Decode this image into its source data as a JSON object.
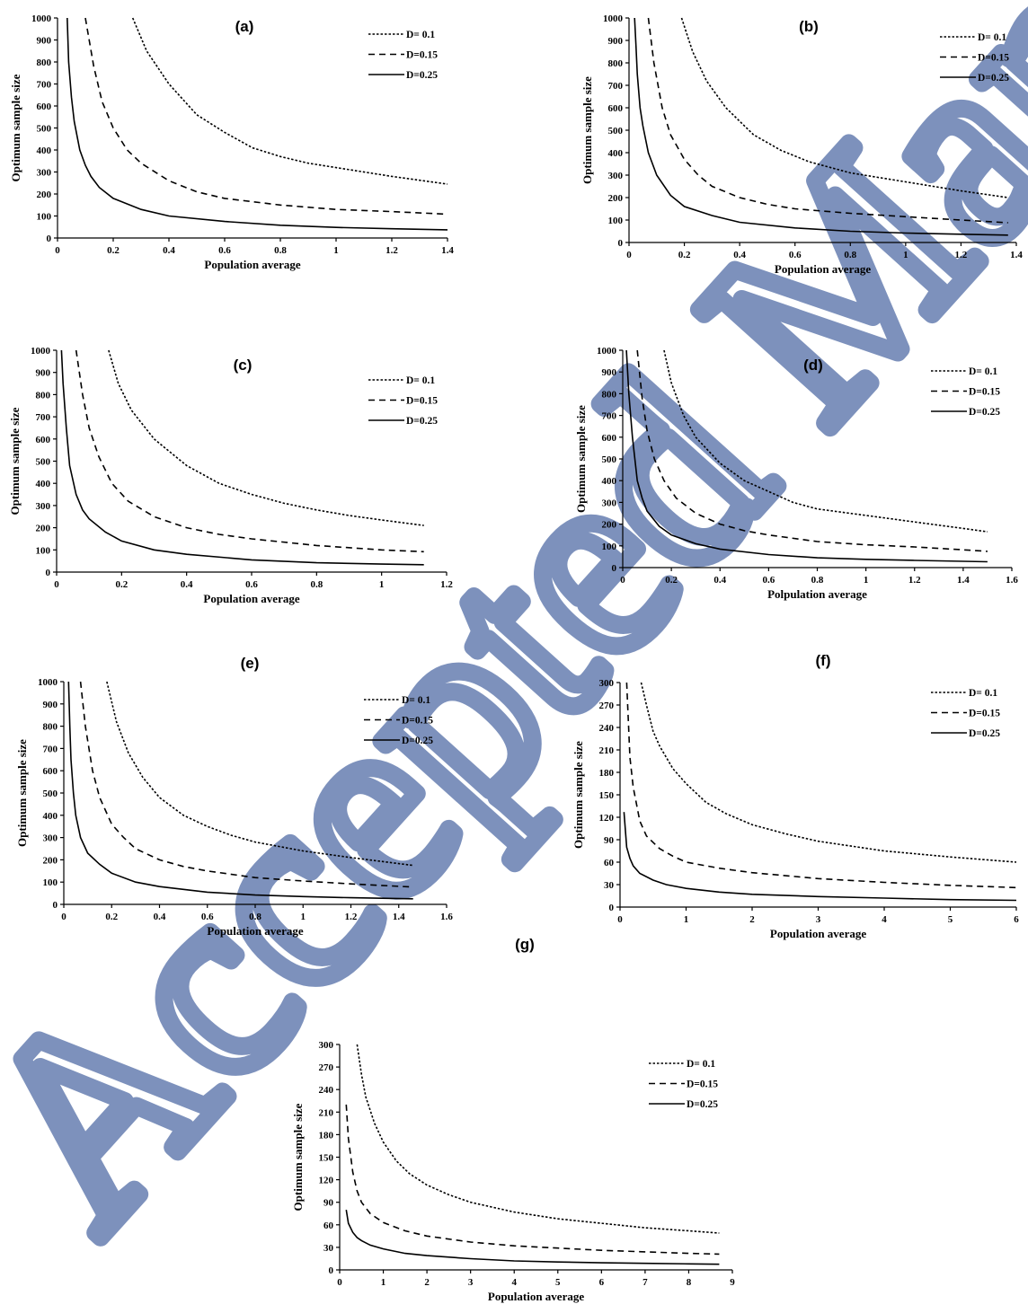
{
  "watermark": {
    "text": "Accepted Manuscript",
    "color": "#6f86b5"
  },
  "chart_data": [
    {
      "id": "a",
      "type": "line",
      "title": "(a)",
      "xlabel": "Population average",
      "ylabel": "Optimum sample size",
      "xlim": [
        0,
        1.4
      ],
      "ylim": [
        0,
        1000
      ],
      "xticks": [
        "0",
        "0.2",
        "0.4",
        "0.6",
        "0.8",
        "1",
        "1.2",
        "1.4"
      ],
      "yticks": [
        "0",
        "100",
        "200",
        "300",
        "400",
        "500",
        "600",
        "700",
        "800",
        "900",
        "1000"
      ],
      "grid": false,
      "legend": "top-right",
      "series": [
        {
          "name": "D= 0.1",
          "style": "dotted",
          "x": [
            0.27,
            0.32,
            0.4,
            0.5,
            0.6,
            0.7,
            0.8,
            0.9,
            1.0,
            1.2,
            1.4
          ],
          "y": [
            1000,
            850,
            700,
            560,
            480,
            410,
            370,
            340,
            320,
            280,
            245
          ]
        },
        {
          "name": "D=0.15",
          "style": "dashed",
          "x": [
            0.1,
            0.13,
            0.16,
            0.2,
            0.25,
            0.3,
            0.4,
            0.5,
            0.6,
            0.8,
            1.0,
            1.2,
            1.4
          ],
          "y": [
            1000,
            780,
            620,
            500,
            400,
            340,
            260,
            210,
            180,
            150,
            130,
            120,
            108
          ]
        },
        {
          "name": "D=0.25",
          "style": "solid",
          "x": [
            0.035,
            0.04,
            0.05,
            0.06,
            0.08,
            0.1,
            0.12,
            0.15,
            0.2,
            0.3,
            0.4,
            0.6,
            0.8,
            1.0,
            1.2,
            1.4
          ],
          "y": [
            1000,
            800,
            640,
            530,
            400,
            330,
            280,
            230,
            180,
            130,
            100,
            75,
            58,
            48,
            42,
            37
          ]
        }
      ]
    },
    {
      "id": "b",
      "type": "line",
      "title": "(b)",
      "xlabel": "Population average",
      "ylabel": "Optimum sample size",
      "xlim": [
        0,
        1.4
      ],
      "ylim": [
        0,
        1000
      ],
      "xticks": [
        "0",
        "0.2",
        "0.4",
        "0.6",
        "0.8",
        "1",
        "1.2",
        "1.4"
      ],
      "yticks": [
        "0",
        "100",
        "200",
        "300",
        "400",
        "500",
        "600",
        "700",
        "800",
        "900",
        "1000"
      ],
      "grid": false,
      "legend": "top-right",
      "series": [
        {
          "name": "D= 0.1",
          "style": "dotted",
          "x": [
            0.19,
            0.23,
            0.28,
            0.35,
            0.45,
            0.55,
            0.65,
            0.8,
            1.0,
            1.2,
            1.37
          ],
          "y": [
            1000,
            850,
            720,
            600,
            480,
            410,
            360,
            310,
            270,
            230,
            200
          ]
        },
        {
          "name": "D=0.15",
          "style": "dashed",
          "x": [
            0.07,
            0.09,
            0.12,
            0.15,
            0.2,
            0.25,
            0.3,
            0.4,
            0.5,
            0.6,
            0.8,
            1.0,
            1.2,
            1.37
          ],
          "y": [
            1000,
            800,
            600,
            480,
            370,
            300,
            250,
            200,
            170,
            150,
            130,
            115,
            100,
            88
          ]
        },
        {
          "name": "D=0.25",
          "style": "solid",
          "x": [
            0.02,
            0.025,
            0.03,
            0.04,
            0.05,
            0.07,
            0.1,
            0.15,
            0.2,
            0.3,
            0.4,
            0.6,
            0.8,
            1.0,
            1.2,
            1.37
          ],
          "y": [
            1000,
            880,
            750,
            600,
            520,
            400,
            300,
            210,
            160,
            120,
            90,
            65,
            50,
            42,
            37,
            33
          ]
        }
      ]
    },
    {
      "id": "c",
      "type": "line",
      "title": "(c)",
      "xlabel": "Population average",
      "ylabel": "Optimum sample size",
      "xlim": [
        0,
        1.2
      ],
      "ylim": [
        0,
        1000
      ],
      "xticks": [
        "0",
        "0.2",
        "0.4",
        "0.6",
        "0.8",
        "1",
        "1.2"
      ],
      "yticks": [
        "0",
        "100",
        "200",
        "300",
        "400",
        "500",
        "600",
        "700",
        "800",
        "900",
        "1000"
      ],
      "grid": false,
      "legend": "top-right",
      "series": [
        {
          "name": "D= 0.1",
          "style": "dotted",
          "x": [
            0.16,
            0.19,
            0.23,
            0.3,
            0.4,
            0.5,
            0.6,
            0.7,
            0.8,
            0.9,
            1.0,
            1.13
          ],
          "y": [
            1000,
            850,
            730,
            600,
            480,
            400,
            350,
            310,
            280,
            255,
            235,
            210
          ]
        },
        {
          "name": "D=0.15",
          "style": "dashed",
          "x": [
            0.06,
            0.08,
            0.1,
            0.13,
            0.17,
            0.22,
            0.3,
            0.4,
            0.5,
            0.6,
            0.8,
            1.0,
            1.13
          ],
          "y": [
            1000,
            800,
            650,
            520,
            400,
            320,
            250,
            200,
            170,
            150,
            120,
            100,
            92
          ]
        },
        {
          "name": "D=0.25",
          "style": "solid",
          "x": [
            0.015,
            0.02,
            0.03,
            0.04,
            0.06,
            0.08,
            0.1,
            0.15,
            0.2,
            0.3,
            0.4,
            0.6,
            0.8,
            1.0,
            1.13
          ],
          "y": [
            1000,
            850,
            650,
            480,
            350,
            280,
            240,
            180,
            140,
            100,
            80,
            55,
            42,
            36,
            33
          ]
        }
      ]
    },
    {
      "id": "d",
      "type": "line",
      "title": "(d)",
      "xlabel": "Polpulation average",
      "ylabel": "Optimum sample size",
      "xlim": [
        0,
        1.6
      ],
      "ylim": [
        0,
        1000
      ],
      "xticks": [
        "0",
        "0.2",
        "0.4",
        "0.6",
        "0.8",
        "1",
        "1.2",
        "1.4",
        "1.6"
      ],
      "yticks": [
        "0",
        "100",
        "200",
        "300",
        "400",
        "500",
        "600",
        "700",
        "800",
        "900",
        "1000"
      ],
      "grid": false,
      "legend": "top-right",
      "series": [
        {
          "name": "D= 0.1",
          "style": "dotted",
          "x": [
            0.17,
            0.2,
            0.25,
            0.3,
            0.4,
            0.5,
            0.6,
            0.7,
            0.8,
            1.0,
            1.2,
            1.4,
            1.5
          ],
          "y": [
            1000,
            850,
            700,
            600,
            480,
            400,
            350,
            300,
            270,
            240,
            210,
            180,
            165
          ]
        },
        {
          "name": "D=0.15",
          "style": "dashed",
          "x": [
            0.06,
            0.08,
            0.1,
            0.13,
            0.17,
            0.22,
            0.3,
            0.4,
            0.5,
            0.6,
            0.8,
            1.0,
            1.2,
            1.4,
            1.5
          ],
          "y": [
            1000,
            780,
            630,
            500,
            400,
            320,
            250,
            200,
            170,
            150,
            120,
            105,
            95,
            82,
            75
          ]
        },
        {
          "name": "D=0.25",
          "style": "solid",
          "x": [
            0.015,
            0.025,
            0.04,
            0.06,
            0.08,
            0.1,
            0.15,
            0.2,
            0.3,
            0.4,
            0.6,
            0.8,
            1.0,
            1.2,
            1.4,
            1.5
          ],
          "y": [
            1000,
            800,
            600,
            400,
            320,
            260,
            190,
            150,
            110,
            85,
            60,
            45,
            38,
            33,
            29,
            27
          ]
        }
      ]
    },
    {
      "id": "e",
      "type": "line",
      "title": "(e)",
      "xlabel": "Population average",
      "ylabel": "Optimum sample size",
      "xlim": [
        0,
        1.6
      ],
      "ylim": [
        0,
        1000
      ],
      "xticks": [
        "0",
        "0.2",
        "0.4",
        "0.6",
        "0.8",
        "1",
        "1.2",
        "1.4",
        "1.6"
      ],
      "yticks": [
        "0",
        "100",
        "200",
        "300",
        "400",
        "500",
        "600",
        "700",
        "800",
        "900",
        "1000"
      ],
      "grid": false,
      "legend": "top-right",
      "series": [
        {
          "name": "D= 0.1",
          "style": "dotted",
          "x": [
            0.18,
            0.22,
            0.27,
            0.33,
            0.4,
            0.5,
            0.6,
            0.7,
            0.8,
            1.0,
            1.2,
            1.46
          ],
          "y": [
            1000,
            820,
            680,
            570,
            480,
            400,
            350,
            310,
            280,
            240,
            210,
            175
          ]
        },
        {
          "name": "D=0.15",
          "style": "dashed",
          "x": [
            0.07,
            0.09,
            0.12,
            0.15,
            0.2,
            0.25,
            0.3,
            0.4,
            0.5,
            0.6,
            0.8,
            1.0,
            1.2,
            1.46
          ],
          "y": [
            1000,
            800,
            600,
            480,
            360,
            300,
            250,
            200,
            170,
            150,
            120,
            105,
            92,
            78
          ]
        },
        {
          "name": "D=0.25",
          "style": "solid",
          "x": [
            0.02,
            0.025,
            0.03,
            0.04,
            0.05,
            0.07,
            0.1,
            0.15,
            0.2,
            0.3,
            0.4,
            0.6,
            0.8,
            1.0,
            1.2,
            1.46
          ],
          "y": [
            1000,
            800,
            650,
            500,
            400,
            300,
            230,
            180,
            140,
            100,
            80,
            55,
            42,
            35,
            30,
            25
          ]
        }
      ]
    },
    {
      "id": "f",
      "type": "line",
      "title": "(f)",
      "xlabel": "Population average",
      "ylabel": "Optimum sample size",
      "xlim": [
        0,
        6
      ],
      "ylim": [
        0,
        300
      ],
      "xticks": [
        "0",
        "1",
        "2",
        "3",
        "4",
        "5",
        "6"
      ],
      "yticks": [
        "0",
        "30",
        "60",
        "90",
        "120",
        "150",
        "180",
        "210",
        "240",
        "270",
        "300"
      ],
      "grid": false,
      "legend": "top-right",
      "series": [
        {
          "name": "D= 0.1",
          "style": "dotted",
          "x": [
            0.32,
            0.4,
            0.5,
            0.6,
            0.8,
            1.0,
            1.3,
            1.6,
            2.0,
            2.5,
            3.0,
            4.0,
            5.0,
            6.0
          ],
          "y": [
            300,
            270,
            235,
            215,
            185,
            165,
            140,
            125,
            110,
            98,
            88,
            75,
            67,
            60
          ]
        },
        {
          "name": "D=0.15",
          "style": "dashed",
          "x": [
            0.1,
            0.15,
            0.2,
            0.3,
            0.4,
            0.6,
            0.8,
            1.0,
            1.5,
            2.0,
            3.0,
            4.0,
            5.0,
            6.0
          ],
          "y": [
            300,
            200,
            160,
            115,
            95,
            78,
            68,
            60,
            52,
            46,
            38,
            33,
            29,
            26
          ]
        },
        {
          "name": "D=0.25",
          "style": "solid",
          "x": [
            0.06,
            0.1,
            0.15,
            0.2,
            0.3,
            0.5,
            0.7,
            1.0,
            1.5,
            2.0,
            3.0,
            4.0,
            5.0,
            6.0
          ],
          "y": [
            127,
            80,
            65,
            55,
            45,
            36,
            30,
            25,
            20,
            17,
            14,
            12,
            10,
            9
          ]
        }
      ]
    },
    {
      "id": "g",
      "type": "line",
      "title": "(g)",
      "xlabel": "Population average",
      "ylabel": "Optimum sample size",
      "xlim": [
        0,
        9
      ],
      "ylim": [
        0,
        300
      ],
      "xticks": [
        "0",
        "1",
        "2",
        "3",
        "4",
        "5",
        "6",
        "7",
        "8",
        "9"
      ],
      "yticks": [
        "0",
        "30",
        "60",
        "90",
        "120",
        "150",
        "180",
        "210",
        "240",
        "270",
        "300"
      ],
      "grid": false,
      "legend": "top-right",
      "series": [
        {
          "name": "D= 0.1",
          "style": "dotted",
          "x": [
            0.4,
            0.5,
            0.6,
            0.8,
            1.0,
            1.3,
            1.6,
            2.0,
            2.5,
            3.0,
            4.0,
            5.0,
            6.0,
            7.0,
            8.0,
            8.7
          ],
          "y": [
            300,
            260,
            230,
            195,
            170,
            145,
            128,
            113,
            100,
            90,
            77,
            68,
            62,
            56,
            52,
            49
          ]
        },
        {
          "name": "D=0.15",
          "style": "dashed",
          "x": [
            0.15,
            0.2,
            0.3,
            0.4,
            0.5,
            0.7,
            1.0,
            1.5,
            2.0,
            3.0,
            4.0,
            5.0,
            6.0,
            7.0,
            8.0,
            8.7
          ],
          "y": [
            220,
            175,
            130,
            105,
            90,
            75,
            63,
            52,
            45,
            37,
            32,
            29,
            26,
            24,
            22,
            21
          ]
        },
        {
          "name": "D=0.25",
          "style": "solid",
          "x": [
            0.15,
            0.2,
            0.3,
            0.4,
            0.5,
            0.7,
            1.0,
            1.5,
            2.0,
            3.0,
            4.0,
            5.0,
            6.0,
            7.0,
            8.0,
            8.7
          ],
          "y": [
            80,
            62,
            50,
            43,
            39,
            33,
            28,
            22,
            19,
            15,
            12,
            10.5,
            9.5,
            8.7,
            8,
            7.5
          ]
        }
      ]
    }
  ]
}
